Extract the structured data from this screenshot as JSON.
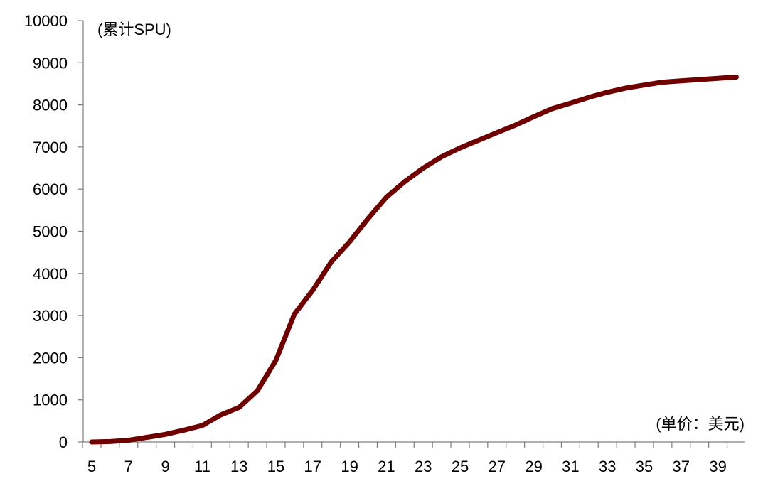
{
  "chart_data": {
    "type": "line",
    "title": "",
    "ylabel": "(累计SPU)",
    "xlabel": "(单价：美元)",
    "ylim": [
      0,
      10000
    ],
    "xlim": [
      5,
      40
    ],
    "yticks": [
      0,
      1000,
      2000,
      3000,
      4000,
      5000,
      6000,
      7000,
      8000,
      9000,
      10000
    ],
    "xticks": [
      5,
      7,
      9,
      11,
      13,
      15,
      17,
      19,
      21,
      23,
      25,
      27,
      29,
      31,
      33,
      35,
      37,
      39
    ],
    "grid": false,
    "line_color": "#6e0000",
    "x": [
      5,
      6,
      7,
      8,
      9,
      10,
      11,
      12,
      13,
      14,
      15,
      16,
      17,
      18,
      19,
      20,
      21,
      22,
      23,
      24,
      25,
      26,
      27,
      28,
      29,
      30,
      31,
      32,
      33,
      34,
      35,
      36,
      37,
      38,
      39,
      40
    ],
    "values": [
      0,
      10,
      40,
      110,
      180,
      280,
      390,
      640,
      820,
      1220,
      1940,
      3030,
      3600,
      4270,
      4750,
      5300,
      5810,
      6180,
      6500,
      6770,
      6980,
      7160,
      7340,
      7520,
      7720,
      7910,
      8040,
      8180,
      8300,
      8400,
      8470,
      8540,
      8570,
      8600,
      8630,
      8660
    ]
  }
}
